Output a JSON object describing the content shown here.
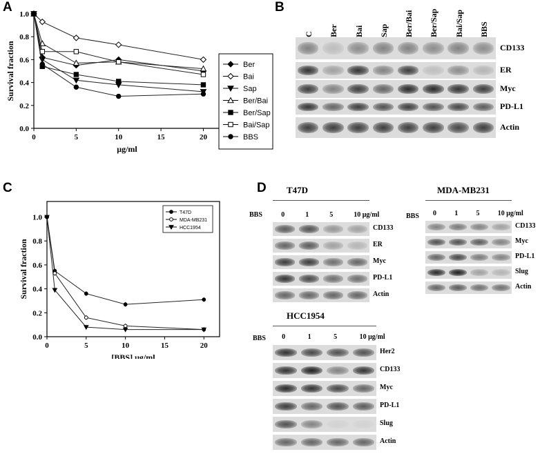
{
  "panels": {
    "A": {
      "letter": "A",
      "chart_data": {
        "type": "line",
        "xlabel": "μg/ml",
        "ylabel": "Survival fraction",
        "xlim": [
          0,
          22
        ],
        "ylim": [
          0,
          1.0
        ],
        "xticks": [
          "0",
          "5",
          "10",
          "15",
          "20"
        ],
        "yticks": [
          "0.0",
          "0.2",
          "0.4",
          "0.6",
          "0.8",
          "1.0"
        ],
        "legend_position": "right",
        "x": [
          0,
          1,
          5,
          10,
          20
        ],
        "series": [
          {
            "name": "Ber",
            "marker": "diamond-filled",
            "values": [
              1.0,
              0.62,
              0.55,
              0.6,
              0.5
            ]
          },
          {
            "name": "Bai",
            "marker": "diamond-open",
            "values": [
              1.0,
              0.93,
              0.79,
              0.73,
              0.6
            ]
          },
          {
            "name": "Sap",
            "marker": "triangle-down-filled",
            "values": [
              1.0,
              0.6,
              0.42,
              0.38,
              0.32
            ]
          },
          {
            "name": "Ber/Bai",
            "marker": "triangle-up-open",
            "values": [
              1.0,
              0.74,
              0.57,
              0.58,
              0.52
            ]
          },
          {
            "name": "Ber/Sap",
            "marker": "square-filled",
            "values": [
              1.0,
              0.54,
              0.47,
              0.41,
              0.38
            ]
          },
          {
            "name": "Bai/Sap",
            "marker": "square-open",
            "values": [
              1.0,
              0.67,
              0.67,
              0.58,
              0.47
            ]
          },
          {
            "name": "BBS",
            "marker": "circle-filled",
            "values": [
              1.0,
              0.56,
              0.36,
              0.28,
              0.3
            ]
          }
        ]
      }
    },
    "B": {
      "letter": "B",
      "lanes": [
        "C",
        "Ber",
        "Bai",
        "Sap",
        "Ber/Bai",
        "Ber/Sap",
        "Bai/Sap",
        "BBS"
      ],
      "rows": [
        {
          "label": "CD133",
          "intensity": [
            0.45,
            0.15,
            0.4,
            0.45,
            0.45,
            0.4,
            0.45,
            0.4
          ]
        },
        {
          "label": "ER",
          "intensity": [
            0.85,
            0.3,
            0.85,
            0.45,
            0.8,
            0.15,
            0.4,
            0.2
          ]
        },
        {
          "label": "Myc",
          "intensity": [
            0.8,
            0.45,
            0.8,
            0.6,
            0.9,
            0.9,
            0.85,
            0.8
          ]
        },
        {
          "label": "PD-L1",
          "intensity": [
            0.85,
            0.6,
            0.8,
            0.7,
            0.8,
            0.7,
            0.75,
            0.65
          ]
        },
        {
          "label": "Actin",
          "intensity": [
            0.8,
            0.8,
            0.8,
            0.8,
            0.8,
            0.8,
            0.75,
            0.8
          ]
        }
      ]
    },
    "C": {
      "letter": "C",
      "chart_data": {
        "type": "line",
        "xlabel": "[BBS] μg/ml",
        "ylabel": "Survival fraction",
        "xlim": [
          0,
          22
        ],
        "ylim": [
          0,
          1.1
        ],
        "xticks": [
          "0",
          "5",
          "10",
          "15",
          "20"
        ],
        "yticks": [
          "0.0",
          "0.2",
          "0.4",
          "0.6",
          "0.8",
          "1.0"
        ],
        "legend_position": "top-right",
        "x": [
          0,
          1,
          5,
          10,
          20
        ],
        "series": [
          {
            "name": "T47D",
            "marker": "circle-filled",
            "values": [
              1.0,
              0.55,
              0.36,
              0.27,
              0.31
            ]
          },
          {
            "name": "MDA-MB231",
            "marker": "circle-open",
            "values": [
              1.0,
              0.53,
              0.16,
              0.09,
              0.06
            ]
          },
          {
            "name": "HCC1954",
            "marker": "triangle-down-filled",
            "values": [
              1.0,
              0.39,
              0.08,
              0.06,
              0.06
            ]
          }
        ]
      }
    },
    "D": {
      "letter": "D",
      "treatment_label": "BBS",
      "blots": [
        {
          "title": "T47D",
          "doses": [
            "0",
            "1",
            "5",
            "10 μg/ml"
          ],
          "rows": [
            {
              "label": "CD133",
              "intensity": [
                0.65,
                0.7,
                0.35,
                0.3
              ]
            },
            {
              "label": "ER",
              "intensity": [
                0.6,
                0.65,
                0.3,
                0.2
              ]
            },
            {
              "label": "Myc",
              "intensity": [
                0.8,
                0.8,
                0.55,
                0.6
              ]
            },
            {
              "label": "PD-L1",
              "intensity": [
                0.85,
                0.75,
                0.55,
                0.55
              ]
            },
            {
              "label": "Actin",
              "intensity": [
                0.6,
                0.6,
                0.6,
                0.6
              ]
            }
          ]
        },
        {
          "title": "MDA-MB231",
          "doses": [
            "0",
            "1",
            "5",
            "10 μg/ml"
          ],
          "rows": [
            {
              "label": "CD133",
              "intensity": [
                0.45,
                0.5,
                0.45,
                0.3
              ]
            },
            {
              "label": "Myc",
              "intensity": [
                0.7,
                0.7,
                0.65,
                0.45
              ]
            },
            {
              "label": "PD-L1",
              "intensity": [
                0.6,
                0.75,
                0.5,
                0.45
              ]
            },
            {
              "label": "Slug",
              "intensity": [
                0.9,
                0.95,
                0.3,
                0.2
              ]
            },
            {
              "label": "Actin",
              "intensity": [
                0.6,
                0.65,
                0.55,
                0.55
              ]
            }
          ]
        },
        {
          "title": "HCC1954",
          "doses": [
            "0",
            "1",
            "5",
            "10 μg/ml"
          ],
          "rows": [
            {
              "label": "Her2",
              "intensity": [
                0.85,
                0.75,
                0.7,
                0.7
              ]
            },
            {
              "label": "CD133",
              "intensity": [
                0.85,
                0.95,
                0.45,
                0.85
              ]
            },
            {
              "label": "Myc",
              "intensity": [
                0.9,
                0.85,
                0.75,
                0.6
              ]
            },
            {
              "label": "PD-L1",
              "intensity": [
                0.8,
                0.6,
                0.7,
                0.65
              ]
            },
            {
              "label": "Slug",
              "intensity": [
                0.7,
                0.45,
                0.05,
                0.05
              ]
            },
            {
              "label": "Actin",
              "intensity": [
                0.6,
                0.6,
                0.6,
                0.6
              ]
            }
          ]
        }
      ]
    }
  }
}
